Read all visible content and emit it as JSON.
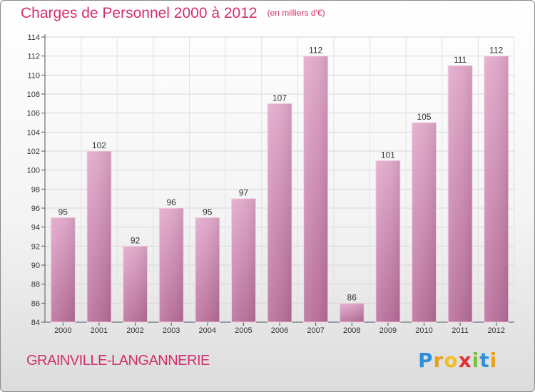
{
  "title": "Charges de Personnel 2000 à 2012",
  "subtitle": "(en milliers d'€)",
  "city": "GRAINVILLE-LANGANNERIE",
  "logo": {
    "letters": [
      "P",
      "r",
      "o",
      "x",
      "i",
      "t",
      "i"
    ],
    "colors": [
      "#2f8fd8",
      "#e8a21a",
      "#f0c020",
      "#e03030",
      "#7cc23a",
      "#2f8fd8",
      "#e8a21a"
    ]
  },
  "colors": {
    "bar": "#d98bb5",
    "text_accent": "#d0306e"
  },
  "chart_data": {
    "type": "bar",
    "categories": [
      "2000",
      "2001",
      "2002",
      "2003",
      "2004",
      "2005",
      "2006",
      "2007",
      "2008",
      "2009",
      "2010",
      "2011",
      "2012"
    ],
    "values": [
      95,
      102,
      92,
      96,
      95,
      97,
      107,
      112,
      86,
      101,
      105,
      111,
      112
    ],
    "ylim": [
      84,
      114
    ],
    "yticks": [
      84,
      86,
      88,
      90,
      92,
      94,
      96,
      98,
      100,
      102,
      104,
      106,
      108,
      110,
      112,
      114
    ],
    "grid": true,
    "legend": "none"
  }
}
